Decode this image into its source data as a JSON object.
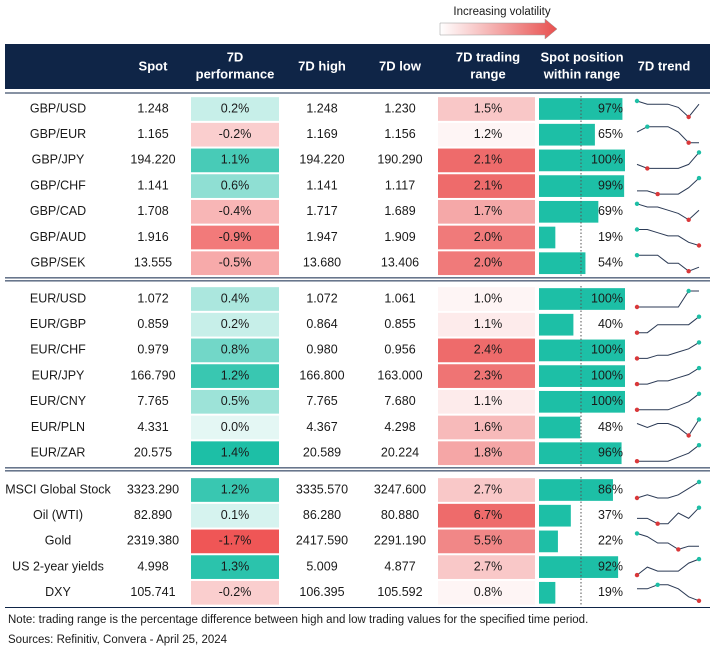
{
  "legend": "Increasing volatility",
  "columns": [
    [
      "Spot"
    ],
    [
      "7D",
      "performance"
    ],
    [
      "7D high"
    ],
    [
      "7D low"
    ],
    [
      "7D trading",
      "range"
    ],
    [
      "Spot position",
      "within range"
    ],
    [
      "7D trend"
    ]
  ],
  "groups": [
    {
      "rows": [
        {
          "cells": [
            "GBP/USD",
            "1.248",
            "0.2%",
            "1.248",
            "1.230",
            "1.5%",
            "97%"
          ],
          "trend": [
            7,
            6,
            6,
            6,
            5,
            2,
            6
          ]
        },
        {
          "cells": [
            "GBP/EUR",
            "1.165",
            "-0.2%",
            "1.169",
            "1.156",
            "1.2%",
            "65%"
          ],
          "trend": [
            6,
            7,
            7,
            7,
            6,
            4,
            4
          ]
        },
        {
          "cells": [
            "GBP/JPY",
            "194.220",
            "1.1%",
            "194.220",
            "190.290",
            "2.1%",
            "100%"
          ],
          "trend": [
            4,
            3,
            3,
            3,
            3,
            4,
            7
          ]
        },
        {
          "cells": [
            "GBP/CHF",
            "1.141",
            "0.6%",
            "1.141",
            "1.117",
            "2.1%",
            "99%"
          ],
          "trend": [
            4,
            4,
            3,
            3,
            3,
            5,
            8
          ]
        },
        {
          "cells": [
            "GBP/CAD",
            "1.708",
            "-0.4%",
            "1.717",
            "1.689",
            "1.7%",
            "69%"
          ],
          "trend": [
            7,
            6,
            6,
            5,
            4,
            2,
            5
          ]
        },
        {
          "cells": [
            "GBP/AUD",
            "1.916",
            "-0.9%",
            "1.947",
            "1.909",
            "2.0%",
            "19%"
          ],
          "trend": [
            7,
            7,
            6,
            5,
            5,
            3,
            2
          ]
        },
        {
          "cells": [
            "GBP/SEK",
            "13.555",
            "-0.5%",
            "13.680",
            "13.406",
            "2.0%",
            "54%"
          ],
          "trend": [
            6,
            6,
            6,
            4,
            4,
            2,
            3
          ]
        }
      ]
    },
    {
      "rows": [
        {
          "cells": [
            "EUR/USD",
            "1.072",
            "0.4%",
            "1.072",
            "1.061",
            "1.0%",
            "100%"
          ],
          "trend": [
            3,
            3,
            3,
            3,
            3,
            7,
            7
          ]
        },
        {
          "cells": [
            "EUR/GBP",
            "0.859",
            "0.2%",
            "0.864",
            "0.855",
            "1.1%",
            "40%"
          ],
          "trend": [
            3,
            3,
            4,
            4,
            4,
            4,
            5
          ]
        },
        {
          "cells": [
            "EUR/CHF",
            "0.979",
            "0.8%",
            "0.980",
            "0.956",
            "2.4%",
            "100%"
          ],
          "trend": [
            2,
            2,
            3,
            3,
            4,
            5,
            7
          ]
        },
        {
          "cells": [
            "EUR/JPY",
            "166.790",
            "1.2%",
            "166.800",
            "163.000",
            "2.3%",
            "100%"
          ],
          "trend": [
            2,
            2,
            3,
            3,
            4,
            5,
            7
          ]
        },
        {
          "cells": [
            "EUR/CNY",
            "7.765",
            "0.5%",
            "7.765",
            "7.680",
            "1.1%",
            "100%"
          ],
          "trend": [
            3,
            3,
            3,
            3,
            4,
            5,
            7
          ]
        },
        {
          "cells": [
            "EUR/PLN",
            "4.331",
            "0.0%",
            "4.367",
            "4.298",
            "1.6%",
            "48%"
          ],
          "trend": [
            5,
            4,
            5,
            5,
            4,
            2,
            6
          ]
        },
        {
          "cells": [
            "EUR/ZAR",
            "20.575",
            "1.4%",
            "20.589",
            "20.224",
            "1.8%",
            "96%"
          ],
          "trend": [
            3,
            3,
            3,
            3,
            4,
            5,
            7
          ]
        }
      ]
    },
    {
      "rows": [
        {
          "cells": [
            "MSCI Global Stock",
            "3323.290",
            "1.2%",
            "3335.570",
            "3247.600",
            "2.7%",
            "86%"
          ],
          "trend": [
            2,
            3,
            2,
            2,
            3,
            5,
            7
          ]
        },
        {
          "cells": [
            "Oil (WTI)",
            "82.890",
            "0.1%",
            "86.280",
            "80.880",
            "6.7%",
            "37%"
          ],
          "trend": [
            4,
            4,
            3,
            3,
            5,
            4,
            6
          ]
        },
        {
          "cells": [
            "Gold",
            "2319.380",
            "-1.7%",
            "2417.590",
            "2291.190",
            "5.5%",
            "22%"
          ],
          "trend": [
            7,
            6,
            4,
            4,
            2,
            3,
            3
          ]
        },
        {
          "cells": [
            "US 2-year yields",
            "4.998",
            "1.3%",
            "5.009",
            "4.877",
            "2.7%",
            "92%"
          ],
          "trend": [
            3,
            5,
            4,
            4,
            4,
            6,
            7
          ]
        },
        {
          "cells": [
            "DXY",
            "105.741",
            "-0.2%",
            "106.395",
            "105.592",
            "0.8%",
            "19%"
          ],
          "trend": [
            6,
            6,
            7,
            7,
            6,
            4,
            3
          ]
        }
      ]
    }
  ],
  "note": "Note: trading range is the percentage difference between high and low trading values for the specified time period.",
  "sources": "Sources: Refinitiv, Convera - April 25, 2024"
}
